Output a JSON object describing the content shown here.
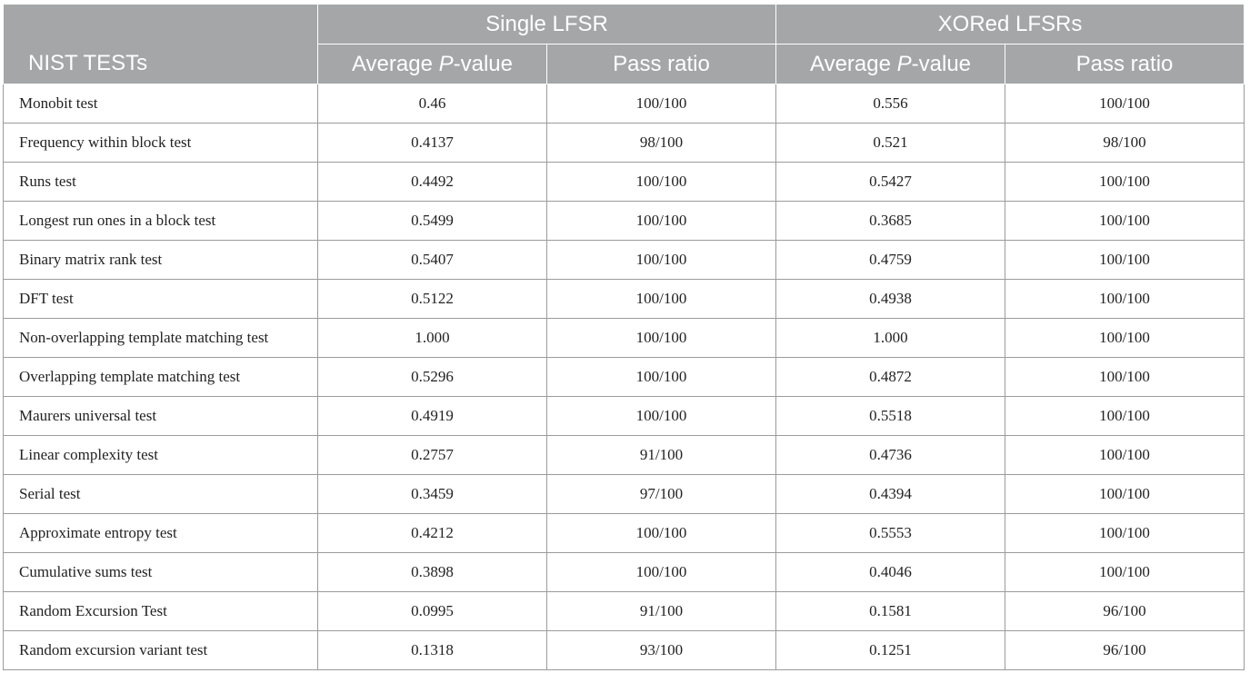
{
  "table": {
    "corner_header": "NIST TESTs",
    "groups": [
      {
        "label": "Single LFSR"
      },
      {
        "label": "XORed LFSRs"
      }
    ],
    "subheaders": [
      {
        "prefix": "Average ",
        "italic": "P",
        "suffix": "-value"
      },
      {
        "label": "Pass ratio"
      },
      {
        "prefix": "Average ",
        "italic": "P",
        "suffix": "-value"
      },
      {
        "label": "Pass ratio"
      }
    ],
    "rows": [
      {
        "test": "Monobit test",
        "single_p": "0.46",
        "single_pass": "100/100",
        "xor_p": "0.556",
        "xor_pass": "100/100"
      },
      {
        "test": "Frequency within block test",
        "single_p": "0.4137",
        "single_pass": "98/100",
        "xor_p": "0.521",
        "xor_pass": "98/100"
      },
      {
        "test": "Runs test",
        "single_p": "0.4492",
        "single_pass": "100/100",
        "xor_p": "0.5427",
        "xor_pass": "100/100"
      },
      {
        "test": "Longest run ones in a block test",
        "single_p": "0.5499",
        "single_pass": "100/100",
        "xor_p": "0.3685",
        "xor_pass": "100/100"
      },
      {
        "test": "Binary matrix rank test",
        "single_p": "0.5407",
        "single_pass": "100/100",
        "xor_p": "0.4759",
        "xor_pass": "100/100"
      },
      {
        "test": "DFT test",
        "single_p": "0.5122",
        "single_pass": "100/100",
        "xor_p": "0.4938",
        "xor_pass": "100/100"
      },
      {
        "test": "Non-overlapping template matching test",
        "single_p": "1.000",
        "single_pass": "100/100",
        "xor_p": "1.000",
        "xor_pass": "100/100"
      },
      {
        "test": "Overlapping template matching test",
        "single_p": "0.5296",
        "single_pass": "100/100",
        "xor_p": "0.4872",
        "xor_pass": "100/100"
      },
      {
        "test": "Maurers universal test",
        "single_p": "0.4919",
        "single_pass": "100/100",
        "xor_p": "0.5518",
        "xor_pass": "100/100"
      },
      {
        "test": "Linear complexity test",
        "single_p": "0.2757",
        "single_pass": "91/100",
        "xor_p": "0.4736",
        "xor_pass": "100/100"
      },
      {
        "test": "Serial test",
        "single_p": "0.3459",
        "single_pass": "97/100",
        "xor_p": "0.4394",
        "xor_pass": "100/100"
      },
      {
        "test": "Approximate entropy test",
        "single_p": "0.4212",
        "single_pass": "100/100",
        "xor_p": "0.5553",
        "xor_pass": "100/100"
      },
      {
        "test": "Cumulative sums test",
        "single_p": "0.3898",
        "single_pass": "100/100",
        "xor_p": "0.4046",
        "xor_pass": "100/100"
      },
      {
        "test": "Random Excursion Test",
        "single_p": "0.0995",
        "single_pass": "91/100",
        "xor_p": "0.1581",
        "xor_pass": "96/100"
      },
      {
        "test": "Random excursion variant test",
        "single_p": "0.1318",
        "single_pass": "93/100",
        "xor_p": "0.1251",
        "xor_pass": "96/100"
      }
    ]
  },
  "colors": {
    "header_bg": "#a4a6a7",
    "header_text": "#ffffff",
    "border": "#9b9b9b",
    "body_text": "#222222"
  }
}
